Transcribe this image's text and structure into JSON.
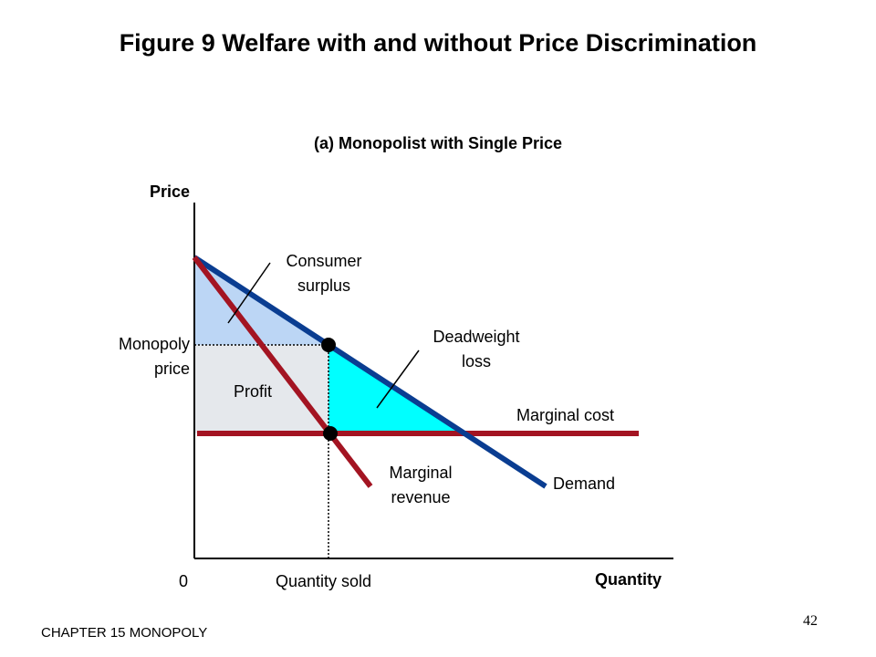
{
  "slide": {
    "title": "Figure 9 Welfare with and without Price Discrimination",
    "footer": "CHAPTER 15 MONOPOLY",
    "page_number": "42"
  },
  "diagram": {
    "subtitle": "(a) Monopolist with Single Price",
    "axes": {
      "y_label": "Price",
      "x_label": "Quantity",
      "origin_label": "0"
    },
    "curve_labels": {
      "demand": "Demand",
      "marginal_revenue_line1": "Marginal",
      "marginal_revenue_line2": "revenue",
      "marginal_cost": "Marginal cost"
    },
    "area_labels": {
      "consumer_surplus_line1": "Consumer",
      "consumer_surplus_line2": "surplus",
      "deadweight_loss_line1": "Deadweight",
      "deadweight_loss_line2": "loss",
      "profit": "Profit"
    },
    "axis_markers": {
      "monopoly_price_line1": "Monopoly",
      "monopoly_price_line2": "price",
      "quantity_sold": "Quantity sold"
    },
    "colors": {
      "demand": "#0a3d91",
      "marginal_revenue": "#a31422",
      "marginal_cost": "#a31422",
      "consumer_surplus": "#bcd6f5",
      "profit": "#e5e8ec",
      "deadweight_loss": "#00ffff"
    }
  }
}
